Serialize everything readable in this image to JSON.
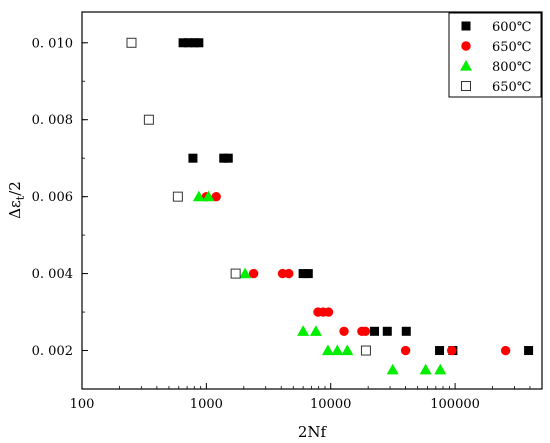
{
  "chart_data": {
    "type": "scatter",
    "title": "",
    "xlabel": "2Nf",
    "ylabel": "Δεt/2",
    "x_scale": "log",
    "xlim": [
      100,
      500000
    ],
    "ylim": [
      0.001,
      0.0108
    ],
    "x_ticks": [
      {
        "value": 100,
        "label": "100"
      },
      {
        "value": 1000,
        "label": "1000"
      },
      {
        "value": 10000,
        "label": "10000"
      },
      {
        "value": 100000,
        "label": "100000"
      }
    ],
    "y_ticks": [
      {
        "value": 0.002,
        "label": "0. 002"
      },
      {
        "value": 0.004,
        "label": "0. 004"
      },
      {
        "value": 0.006,
        "label": "0. 006"
      },
      {
        "value": 0.008,
        "label": "0. 008"
      },
      {
        "value": 0.01,
        "label": "0. 010"
      }
    ],
    "grid": false,
    "legend_position": "top-right",
    "series": [
      {
        "name": "600℃",
        "marker": "square-filled",
        "color": "#000000",
        "points": [
          {
            "x": 650,
            "y": 0.01
          },
          {
            "x": 720,
            "y": 0.01
          },
          {
            "x": 800,
            "y": 0.01
          },
          {
            "x": 870,
            "y": 0.01
          },
          {
            "x": 780,
            "y": 0.007
          },
          {
            "x": 1380,
            "y": 0.007
          },
          {
            "x": 1500,
            "y": 0.007
          },
          {
            "x": 6000,
            "y": 0.004
          },
          {
            "x": 6600,
            "y": 0.004
          },
          {
            "x": 22500,
            "y": 0.0025
          },
          {
            "x": 28500,
            "y": 0.0025
          },
          {
            "x": 40500,
            "y": 0.0025
          },
          {
            "x": 75000,
            "y": 0.002
          },
          {
            "x": 96000,
            "y": 0.002
          },
          {
            "x": 390000,
            "y": 0.002
          }
        ]
      },
      {
        "name": "650℃",
        "marker": "circle-filled",
        "color": "#ff0000",
        "points": [
          {
            "x": 1000,
            "y": 0.006
          },
          {
            "x": 1200,
            "y": 0.006
          },
          {
            "x": 2400,
            "y": 0.004
          },
          {
            "x": 4100,
            "y": 0.004
          },
          {
            "x": 4600,
            "y": 0.004
          },
          {
            "x": 7900,
            "y": 0.003
          },
          {
            "x": 8700,
            "y": 0.003
          },
          {
            "x": 9600,
            "y": 0.003
          },
          {
            "x": 12800,
            "y": 0.0025
          },
          {
            "x": 17800,
            "y": 0.0025
          },
          {
            "x": 19000,
            "y": 0.0025
          },
          {
            "x": 40000,
            "y": 0.002
          },
          {
            "x": 94000,
            "y": 0.002
          },
          {
            "x": 255000,
            "y": 0.002
          }
        ]
      },
      {
        "name": "800℃",
        "marker": "triangle-filled",
        "color": "#00ee00",
        "points": [
          {
            "x": 870,
            "y": 0.006
          },
          {
            "x": 1040,
            "y": 0.006
          },
          {
            "x": 2050,
            "y": 0.004
          },
          {
            "x": 6000,
            "y": 0.0025
          },
          {
            "x": 7600,
            "y": 0.0025
          },
          {
            "x": 9500,
            "y": 0.002
          },
          {
            "x": 11300,
            "y": 0.002
          },
          {
            "x": 13600,
            "y": 0.002
          },
          {
            "x": 31500,
            "y": 0.0015
          },
          {
            "x": 58000,
            "y": 0.0015
          },
          {
            "x": 76000,
            "y": 0.0015
          }
        ]
      },
      {
        "name": "650℃",
        "marker": "square-open",
        "color": "#000000",
        "points": [
          {
            "x": 250,
            "y": 0.01
          },
          {
            "x": 345,
            "y": 0.008
          },
          {
            "x": 590,
            "y": 0.006
          },
          {
            "x": 1720,
            "y": 0.004
          },
          {
            "x": 19200,
            "y": 0.002
          }
        ]
      }
    ]
  }
}
